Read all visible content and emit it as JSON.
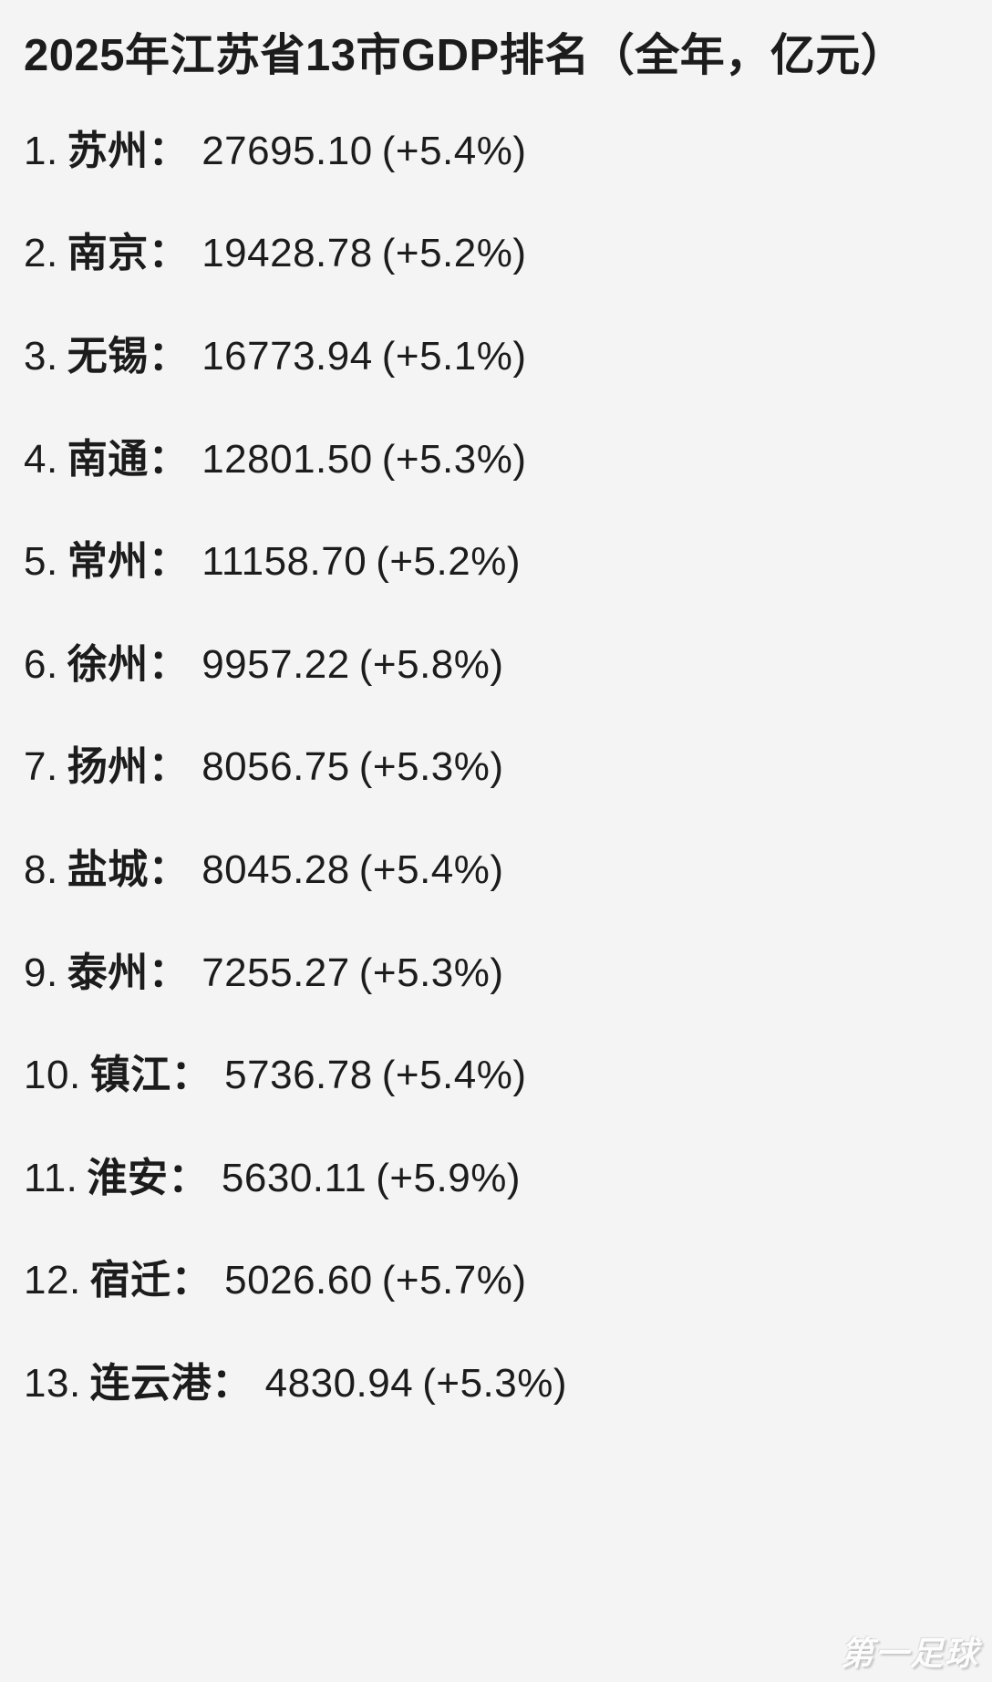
{
  "page": {
    "title": "2025年江苏省13市GDP排名（全年，亿元）",
    "watermark": "第一足球",
    "colors": {
      "background": "#f4f4f5",
      "text": "#1c1c1c",
      "watermark": "#ffffff"
    }
  },
  "ranking": {
    "separator": "：",
    "items": [
      {
        "rank": "1.",
        "city": "苏州",
        "value": "27695.10",
        "growth": "(+5.4%)"
      },
      {
        "rank": "2.",
        "city": "南京",
        "value": "19428.78",
        "growth": "(+5.2%)"
      },
      {
        "rank": "3.",
        "city": "无锡",
        "value": "16773.94",
        "growth": "(+5.1%)"
      },
      {
        "rank": "4.",
        "city": "南通",
        "value": "12801.50",
        "growth": "(+5.3%)"
      },
      {
        "rank": "5.",
        "city": "常州",
        "value": "11158.70",
        "growth": "(+5.2%)"
      },
      {
        "rank": "6.",
        "city": "徐州",
        "value": "9957.22",
        "growth": "(+5.8%)"
      },
      {
        "rank": "7.",
        "city": "扬州",
        "value": "8056.75",
        "growth": "(+5.3%)"
      },
      {
        "rank": "8.",
        "city": "盐城",
        "value": "8045.28",
        "growth": "(+5.4%)"
      },
      {
        "rank": "9.",
        "city": "泰州",
        "value": "7255.27",
        "growth": "(+5.3%)"
      },
      {
        "rank": "10.",
        "city": "镇江",
        "value": "5736.78",
        "growth": "(+5.4%)"
      },
      {
        "rank": "11.",
        "city": "淮安",
        "value": "5630.11",
        "growth": "(+5.9%)"
      },
      {
        "rank": "12.",
        "city": "宿迁",
        "value": "5026.60",
        "growth": "(+5.7%)"
      },
      {
        "rank": "13.",
        "city": "连云港",
        "value": "4830.94",
        "growth": "(+5.3%)"
      }
    ]
  },
  "chart_data": {
    "type": "table",
    "title": "2025年江苏省13市GDP排名（全年，亿元）",
    "unit": "亿元",
    "period": "2025 全年",
    "columns": [
      "rank",
      "city",
      "gdp",
      "yoy_growth_pct"
    ],
    "rows": [
      {
        "rank": 1,
        "city": "苏州",
        "gdp": 27695.1,
        "yoy_growth_pct": 5.4
      },
      {
        "rank": 2,
        "city": "南京",
        "gdp": 19428.78,
        "yoy_growth_pct": 5.2
      },
      {
        "rank": 3,
        "city": "无锡",
        "gdp": 16773.94,
        "yoy_growth_pct": 5.1
      },
      {
        "rank": 4,
        "city": "南通",
        "gdp": 12801.5,
        "yoy_growth_pct": 5.3
      },
      {
        "rank": 5,
        "city": "常州",
        "gdp": 11158.7,
        "yoy_growth_pct": 5.2
      },
      {
        "rank": 6,
        "city": "徐州",
        "gdp": 9957.22,
        "yoy_growth_pct": 5.8
      },
      {
        "rank": 7,
        "city": "扬州",
        "gdp": 8056.75,
        "yoy_growth_pct": 5.3
      },
      {
        "rank": 8,
        "city": "盐城",
        "gdp": 8045.28,
        "yoy_growth_pct": 5.4
      },
      {
        "rank": 9,
        "city": "泰州",
        "gdp": 7255.27,
        "yoy_growth_pct": 5.3
      },
      {
        "rank": 10,
        "city": "镇江",
        "gdp": 5736.78,
        "yoy_growth_pct": 5.4
      },
      {
        "rank": 11,
        "city": "淮安",
        "gdp": 5630.11,
        "yoy_growth_pct": 5.9
      },
      {
        "rank": 12,
        "city": "宿迁",
        "gdp": 5026.6,
        "yoy_growth_pct": 5.7
      },
      {
        "rank": 13,
        "city": "连云港",
        "gdp": 4830.94,
        "yoy_growth_pct": 5.3
      }
    ]
  }
}
